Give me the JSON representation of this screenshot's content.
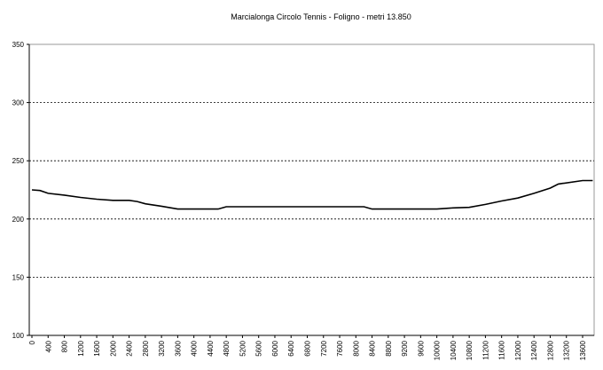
{
  "chart_data": {
    "type": "line",
    "title": "Marcialonga Circolo Tennis - Foligno - metri 13.850",
    "xlabel": "",
    "ylabel": "",
    "ylim": [
      100,
      350
    ],
    "xlim": [
      0,
      13850
    ],
    "yticks": [
      100,
      150,
      200,
      250,
      300,
      350
    ],
    "xticks": [
      0,
      400,
      800,
      1200,
      1600,
      2000,
      2400,
      2800,
      3200,
      3600,
      4000,
      4400,
      4800,
      5200,
      5600,
      6000,
      6400,
      6800,
      7200,
      7600,
      8000,
      8400,
      8800,
      9200,
      9600,
      10000,
      10400,
      10800,
      11200,
      11600,
      12000,
      12400,
      12800,
      13200,
      13600
    ],
    "grid": "horizontal dashed",
    "line_color": "#000000",
    "series": [
      {
        "x": [
          0,
          200,
          400,
          800,
          1200,
          1600,
          2000,
          2400,
          2600,
          2800,
          3200,
          3600,
          4000,
          4600,
          4800,
          5200,
          6000,
          7000,
          8200,
          8400,
          9000,
          10000,
          10400,
          10800,
          11200,
          11600,
          12000,
          12400,
          12800,
          13000,
          13600,
          13850
        ],
        "values": [
          225,
          224.5,
          222,
          220.5,
          218.5,
          217,
          216,
          216,
          215,
          213,
          211,
          208.5,
          208.5,
          208.5,
          210.5,
          210.5,
          210.5,
          210.5,
          210.5,
          208.5,
          208.5,
          208.5,
          209.5,
          210,
          212.5,
          215.5,
          218,
          222,
          226.5,
          230,
          233,
          233
        ]
      }
    ]
  }
}
